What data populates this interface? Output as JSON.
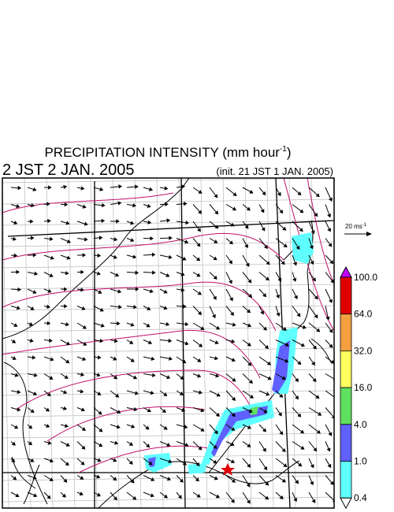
{
  "title": {
    "text": "PRECIPITATION INTENSITY (mm hour",
    "superscript": "-1",
    "close": ")"
  },
  "valid_time": "2 JST 2 JAN. 2005",
  "init_time": "(init. 21 JST 1 JAN. 2005)",
  "wind_scale": {
    "label": "20 ms",
    "superscript": "-1"
  },
  "colorbar": {
    "levels": [
      "100.0",
      "64.0",
      "32.0",
      "16.0",
      "4.0",
      "1.0",
      "0.4"
    ],
    "colors": [
      "#e00000",
      "#f4a040",
      "#ffff60",
      "#60e060",
      "#6060ff",
      "#60ffff"
    ],
    "over_color": "#c000ff",
    "under_color": "#ffffff"
  }
}
